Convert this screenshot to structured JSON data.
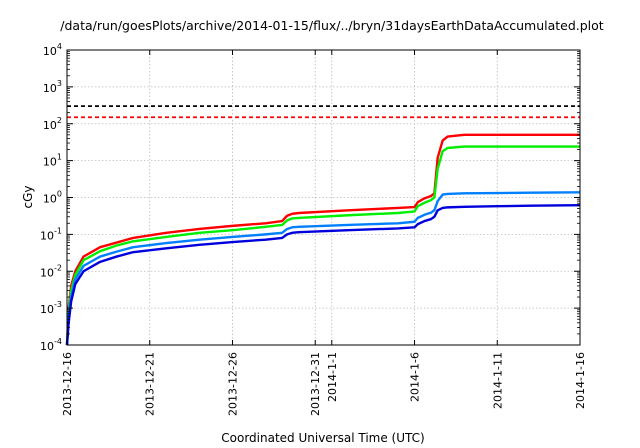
{
  "chart_data": {
    "type": "line",
    "title": "/data/run/goesPlots/archive/2014-01-15/flux/../bryn/31daysEarthDataAccumulated.plot",
    "xlabel": "Coordinated Universal Time (UTC)",
    "ylabel": "cGy",
    "y_scale": "log",
    "ylim": [
      0.0001,
      10000
    ],
    "xlim": [
      "2013-12-16",
      "2014-1-16"
    ],
    "grid": true,
    "x_ticks": [
      "2013-12-16",
      "2013-12-21",
      "2013-12-26",
      "2013-12-31",
      "2014-1-1",
      "2014-1-6",
      "2014-1-11",
      "2014-1-16"
    ],
    "x_tick_days": [
      0,
      5,
      10,
      15,
      16,
      21,
      26,
      31
    ],
    "y_ticks": [
      {
        "base": "10",
        "exp": "-4",
        "value": 0.0001
      },
      {
        "base": "10",
        "exp": "-3",
        "value": 0.001
      },
      {
        "base": "10",
        "exp": "-2",
        "value": 0.01
      },
      {
        "base": "10",
        "exp": "-1",
        "value": 0.1
      },
      {
        "base": "10",
        "exp": "0",
        "value": 1
      },
      {
        "base": "10",
        "exp": "1",
        "value": 10
      },
      {
        "base": "10",
        "exp": "2",
        "value": 100
      },
      {
        "base": "10",
        "exp": "3",
        "value": 1000
      },
      {
        "base": "10",
        "exp": "4",
        "value": 10000
      }
    ],
    "thresholds": [
      {
        "value": 300,
        "color": "#000000",
        "style": "dashed"
      },
      {
        "value": 150,
        "color": "#ff0000",
        "style": "dashed"
      }
    ],
    "series": [
      {
        "color": "#ff0000",
        "x": [
          0,
          0.1,
          0.25,
          0.5,
          1,
          2,
          3,
          4,
          6,
          8,
          10,
          12,
          13,
          13.3,
          13.6,
          14,
          17,
          20,
          21,
          21.2,
          21.6,
          22,
          22.2,
          22.4,
          22.7,
          23,
          24,
          26,
          28,
          31
        ],
        "y": [
          0.0001,
          0.001,
          0.004,
          0.01,
          0.025,
          0.045,
          0.06,
          0.08,
          0.11,
          0.14,
          0.17,
          0.2,
          0.23,
          0.32,
          0.36,
          0.38,
          0.45,
          0.52,
          0.55,
          0.75,
          0.95,
          1.1,
          1.3,
          12,
          35,
          45,
          50,
          50,
          50,
          50
        ]
      },
      {
        "color": "#00ee00",
        "x": [
          0,
          0.1,
          0.25,
          0.5,
          1,
          2,
          3,
          4,
          6,
          8,
          10,
          12,
          13,
          13.3,
          13.6,
          14,
          17,
          20,
          21,
          21.2,
          21.6,
          22,
          22.2,
          22.4,
          22.7,
          23,
          24,
          26,
          28,
          31
        ],
        "y": [
          0.0001,
          0.0008,
          0.003,
          0.008,
          0.02,
          0.035,
          0.05,
          0.065,
          0.085,
          0.11,
          0.13,
          0.16,
          0.18,
          0.24,
          0.27,
          0.28,
          0.33,
          0.38,
          0.42,
          0.58,
          0.72,
          0.85,
          1.0,
          6,
          18,
          22,
          24,
          24,
          24,
          24
        ]
      },
      {
        "color": "#0080ff",
        "x": [
          0,
          0.1,
          0.25,
          0.5,
          1,
          2,
          3,
          4,
          6,
          8,
          10,
          12,
          13,
          13.3,
          13.6,
          14,
          17,
          20,
          21,
          21.2,
          21.6,
          22,
          22.2,
          22.4,
          22.7,
          23,
          24,
          26,
          28,
          31
        ],
        "y": [
          0.0001,
          0.0006,
          0.002,
          0.006,
          0.014,
          0.025,
          0.034,
          0.045,
          0.058,
          0.072,
          0.085,
          0.1,
          0.11,
          0.14,
          0.155,
          0.16,
          0.18,
          0.2,
          0.22,
          0.28,
          0.34,
          0.39,
          0.45,
          0.8,
          1.2,
          1.25,
          1.3,
          1.32,
          1.35,
          1.38
        ]
      },
      {
        "color": "#0000dd",
        "x": [
          0,
          0.1,
          0.25,
          0.5,
          1,
          2,
          3,
          4,
          6,
          8,
          10,
          12,
          13,
          13.3,
          13.6,
          14,
          17,
          20,
          21,
          21.2,
          21.6,
          22,
          22.2,
          22.4,
          22.7,
          23,
          24,
          26,
          28,
          31
        ],
        "y": [
          0.0001,
          0.0004,
          0.0015,
          0.0045,
          0.01,
          0.018,
          0.025,
          0.033,
          0.042,
          0.052,
          0.062,
          0.072,
          0.08,
          0.1,
          0.11,
          0.115,
          0.13,
          0.145,
          0.155,
          0.19,
          0.23,
          0.26,
          0.3,
          0.45,
          0.52,
          0.54,
          0.56,
          0.58,
          0.6,
          0.62
        ]
      }
    ]
  }
}
